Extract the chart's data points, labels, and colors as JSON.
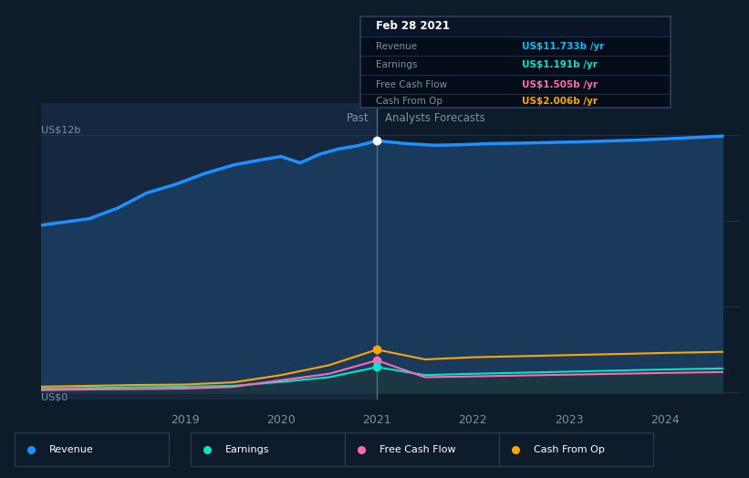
{
  "bg_color": "#0d1b2a",
  "plot_bg_color": "#0d1b2a",
  "past_shade_color": "#162840",
  "ylabel_top": "US$12b",
  "ylabel_bottom": "US$0",
  "x_ticks": [
    "2019",
    "2020",
    "2021",
    "2022",
    "2023",
    "2024"
  ],
  "x_tick_pos": [
    2019,
    2020,
    2021,
    2022,
    2023,
    2024
  ],
  "past_label": "Past",
  "forecast_label": "Analysts Forecasts",
  "tooltip_date": "Feb 28 2021",
  "tooltip_items": [
    {
      "label": "Revenue",
      "value": "US$11.733b /yr",
      "color": "#00bfff"
    },
    {
      "label": "Earnings",
      "value": "US$1.191b /yr",
      "color": "#00e5cc"
    },
    {
      "label": "Free Cash Flow",
      "value": "US$1.505b /yr",
      "color": "#ff69b4"
    },
    {
      "label": "Cash From Op",
      "value": "US$2.006b /yr",
      "color": "#ffa500"
    }
  ],
  "legend_items": [
    {
      "label": "Revenue",
      "color": "#1e90ff"
    },
    {
      "label": "Earnings",
      "color": "#00e5cc"
    },
    {
      "label": "Free Cash Flow",
      "color": "#ff69b4"
    },
    {
      "label": "Cash From Op",
      "color": "#ffa500"
    }
  ],
  "revenue": {
    "x": [
      2017.5,
      2018.0,
      2018.3,
      2018.6,
      2018.9,
      2019.2,
      2019.5,
      2019.8,
      2020.0,
      2020.2,
      2020.4,
      2020.6,
      2020.8,
      2021.0,
      2021.3,
      2021.6,
      2021.9,
      2022.2,
      2022.5,
      2022.8,
      2023.1,
      2023.4,
      2023.7,
      2024.0,
      2024.3,
      2024.6
    ],
    "y": [
      7.8,
      8.1,
      8.6,
      9.3,
      9.7,
      10.2,
      10.6,
      10.85,
      11.0,
      10.7,
      11.1,
      11.35,
      11.5,
      11.733,
      11.6,
      11.52,
      11.55,
      11.6,
      11.62,
      11.65,
      11.68,
      11.72,
      11.76,
      11.82,
      11.88,
      11.95
    ],
    "color": "#1e90ff",
    "linewidth": 2.5
  },
  "earnings": {
    "x": [
      2017.5,
      2018.0,
      2018.5,
      2019.0,
      2019.5,
      2020.0,
      2020.5,
      2021.0,
      2021.5,
      2022.0,
      2022.5,
      2023.0,
      2023.5,
      2024.0,
      2024.6
    ],
    "y": [
      0.18,
      0.22,
      0.25,
      0.28,
      0.32,
      0.5,
      0.72,
      1.191,
      0.82,
      0.88,
      0.93,
      0.98,
      1.03,
      1.08,
      1.13
    ],
    "color": "#00e5cc",
    "linewidth": 1.5
  },
  "fcf": {
    "x": [
      2017.5,
      2018.0,
      2018.5,
      2019.0,
      2019.5,
      2020.0,
      2020.5,
      2021.0,
      2021.5,
      2022.0,
      2022.5,
      2023.0,
      2023.5,
      2024.0,
      2024.6
    ],
    "y": [
      0.12,
      0.15,
      0.17,
      0.19,
      0.27,
      0.58,
      0.88,
      1.505,
      0.72,
      0.76,
      0.8,
      0.84,
      0.88,
      0.92,
      0.96
    ],
    "color": "#ff69b4",
    "linewidth": 1.5
  },
  "cashop": {
    "x": [
      2017.5,
      2018.0,
      2018.5,
      2019.0,
      2019.5,
      2020.0,
      2020.5,
      2021.0,
      2021.5,
      2022.0,
      2022.5,
      2023.0,
      2023.5,
      2024.0,
      2024.6
    ],
    "y": [
      0.28,
      0.32,
      0.36,
      0.38,
      0.48,
      0.82,
      1.28,
      2.006,
      1.55,
      1.65,
      1.7,
      1.75,
      1.8,
      1.85,
      1.9
    ],
    "color": "#ffa500",
    "linewidth": 1.5
  },
  "past_line_x": 2021.0,
  "xlim": [
    2017.5,
    2024.8
  ],
  "ylim": [
    -0.3,
    13.5
  ],
  "y_axis_max": 12.0
}
